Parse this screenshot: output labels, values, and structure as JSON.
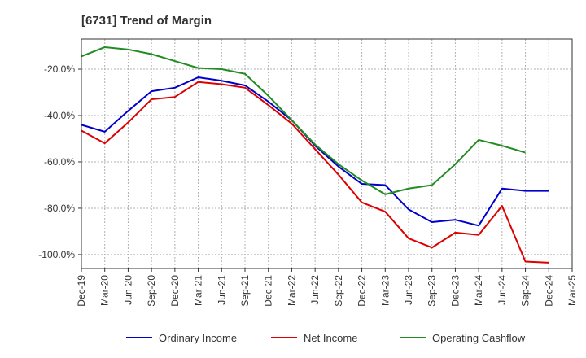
{
  "chart_data": {
    "type": "line",
    "title": "[6731]  Trend of Margin",
    "xlabel": "",
    "ylabel": "",
    "x": [
      "Dec-19",
      "Mar-20",
      "Jun-20",
      "Sep-20",
      "Dec-20",
      "Mar-21",
      "Jun-21",
      "Sep-21",
      "Dec-21",
      "Mar-22",
      "Jun-22",
      "Sep-22",
      "Dec-22",
      "Mar-23",
      "Jun-23",
      "Sep-23",
      "Dec-23",
      "Mar-24",
      "Jun-24",
      "Sep-24",
      "Dec-24",
      "Mar-25"
    ],
    "y_ticks": [
      -20,
      -40,
      -60,
      -80,
      -100
    ],
    "y_tick_labels": [
      "-20.0%",
      "-40.0%",
      "-60.0%",
      "-80.0%",
      "-100.0%"
    ],
    "ylim": [
      -106,
      -7
    ],
    "grid": true,
    "legend_position": "bottom",
    "series": [
      {
        "name": "Ordinary Income",
        "color": "#0000cc",
        "values": [
          -44.0,
          -47.0,
          -38.0,
          -29.5,
          -28.0,
          -23.5,
          -25.0,
          -27.0,
          -34.0,
          -42.0,
          -53.0,
          -62.0,
          -69.5,
          -70.0,
          -80.5,
          -86.0,
          -85.0,
          -87.5,
          -71.5,
          -72.5,
          -72.5,
          null
        ]
      },
      {
        "name": "Net Income",
        "color": "#dd0000",
        "values": [
          -46.5,
          -52.0,
          -43.0,
          -33.0,
          -32.0,
          -25.5,
          -26.5,
          -28.0,
          -35.5,
          -43.5,
          -54.5,
          -65.5,
          -77.5,
          -81.5,
          -93.0,
          -97.0,
          -90.5,
          -91.5,
          -79.0,
          -103.0,
          -103.5,
          null
        ]
      },
      {
        "name": "Operating Cashflow",
        "color": "#228b22",
        "values": [
          -14.5,
          -10.5,
          -11.5,
          -13.5,
          -16.5,
          -19.5,
          -20.0,
          -22.0,
          -31.5,
          -42.0,
          -52.5,
          -61.0,
          -68.0,
          -74.0,
          -71.5,
          -70.0,
          -61.0,
          -50.5,
          -53.0,
          -56.0,
          null,
          null
        ]
      }
    ]
  }
}
